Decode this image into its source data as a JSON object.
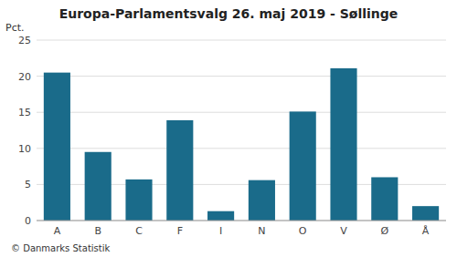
{
  "chart_data": {
    "type": "bar",
    "title": "Europa-Parlamentsvalg 26. maj 2019 - Søllinge",
    "ylabel": "Pct.",
    "footer": "© Danmarks Statistik",
    "categories": [
      "A",
      "B",
      "C",
      "F",
      "I",
      "N",
      "O",
      "V",
      "Ø",
      "Å"
    ],
    "values": [
      20.5,
      9.5,
      5.7,
      13.9,
      1.3,
      5.6,
      15.1,
      21.1,
      6.0,
      2.0
    ],
    "color": "#1a6b8a",
    "ylim": [
      0,
      25
    ],
    "yticks": [
      0,
      5,
      10,
      15,
      20,
      25
    ],
    "grid": true
  }
}
